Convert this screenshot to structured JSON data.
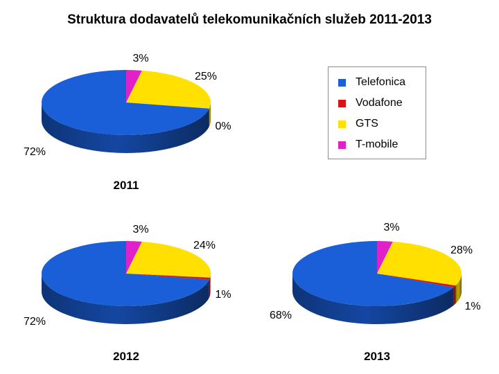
{
  "chart_data": {
    "type": "pie",
    "title": "Struktura dodavatelů telekomunikačních služeb 2011-2013",
    "categories": [
      "Telefonica",
      "Vodafone",
      "GTS",
      "T-mobile"
    ],
    "colors": [
      "#1a5fd8",
      "#d41515",
      "#ffe000",
      "#e020c8"
    ],
    "legend_position": "right",
    "charts": [
      {
        "label": "2011",
        "values": [
          72,
          0,
          25,
          3
        ],
        "labels": [
          "72%",
          "0%",
          "25%",
          "3%"
        ]
      },
      {
        "label": "2012",
        "values": [
          72,
          1,
          24,
          3
        ],
        "labels": [
          "72%",
          "1%",
          "24%",
          "3%"
        ]
      },
      {
        "label": "2013",
        "values": [
          68,
          1,
          28,
          3
        ],
        "labels": [
          "68%",
          "1%",
          "28%",
          "3%"
        ]
      }
    ]
  }
}
